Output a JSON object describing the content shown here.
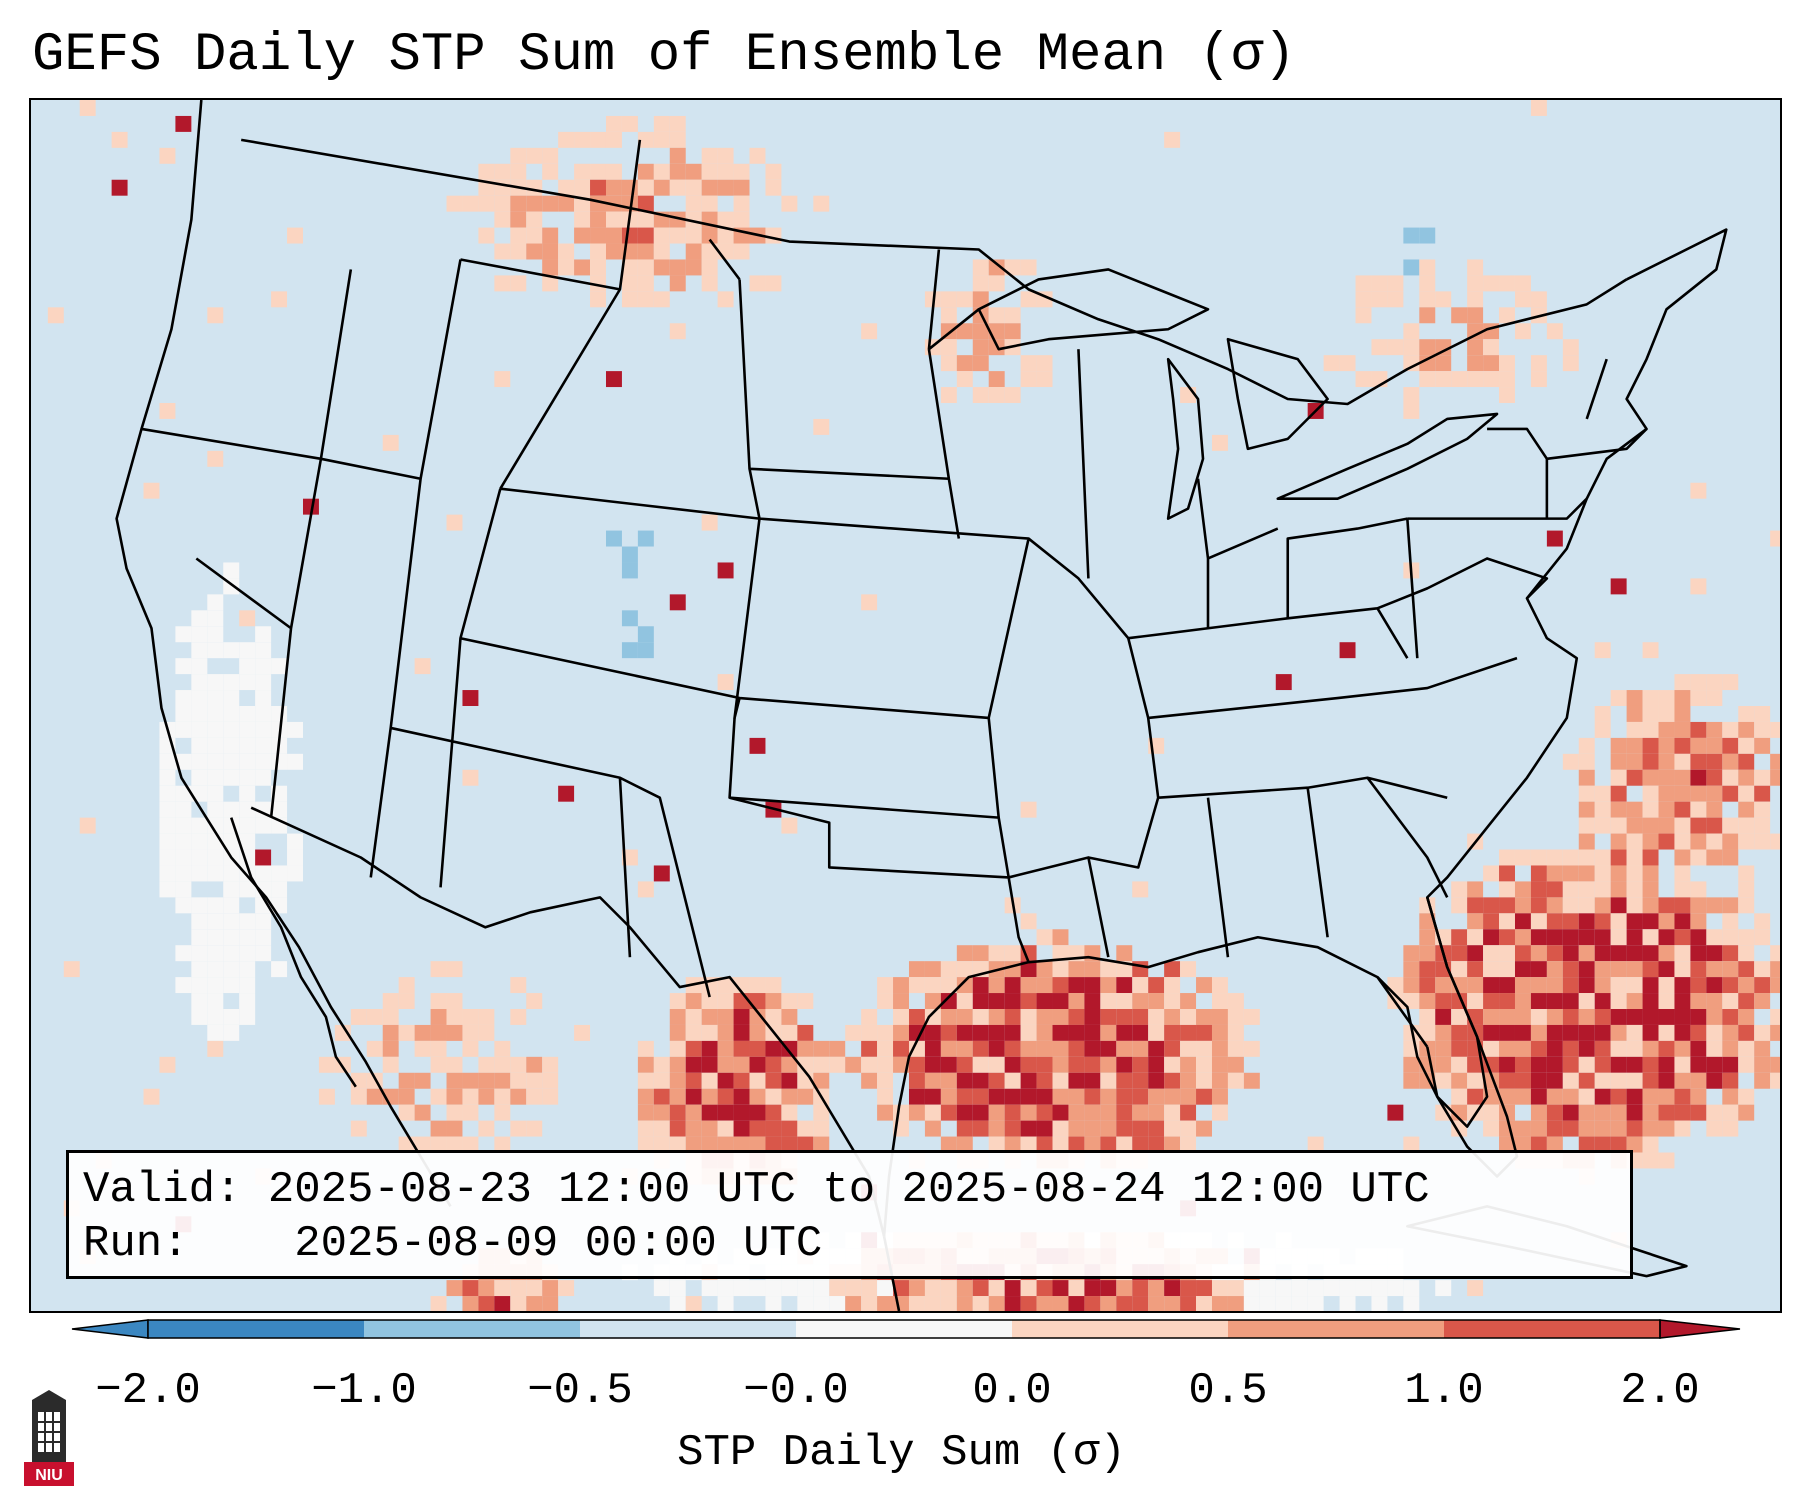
{
  "title": "GEFS Daily STP Sum of Ensemble Mean (σ)",
  "info": {
    "valid_label": "Valid:",
    "valid_value": "2025-08-23 12:00 UTC to 2025-08-24 12:00 UTC",
    "run_label": "Run:",
    "run_value": "2025-08-09 00:00 UTC"
  },
  "colorbar": {
    "label": "STP Daily Sum (σ)",
    "ticks": [
      "−2.0",
      "−1.0",
      "−0.5",
      "−0.0",
      "0.0",
      "0.5",
      "1.0",
      "2.0"
    ],
    "colors": [
      "#3b87c1",
      "#91c4e0",
      "#d2e4f0",
      "#f7f7f7",
      "#fbd5c1",
      "#f09e7f",
      "#d9574a",
      "#b2182b"
    ]
  },
  "logo": {
    "text": "NIU",
    "color": "#c8102e"
  },
  "field_colors": {
    "very_neg": "#3b87c1",
    "neg": "#91c4e0",
    "near_zero_neg": "#d2e4f0",
    "near_zero_pos": "#f7f7f7",
    "pos_low": "#fbd5c1",
    "pos_mid": "#f09e7f",
    "pos_high": "#d9574a",
    "pos_max": "#b2182b"
  }
}
